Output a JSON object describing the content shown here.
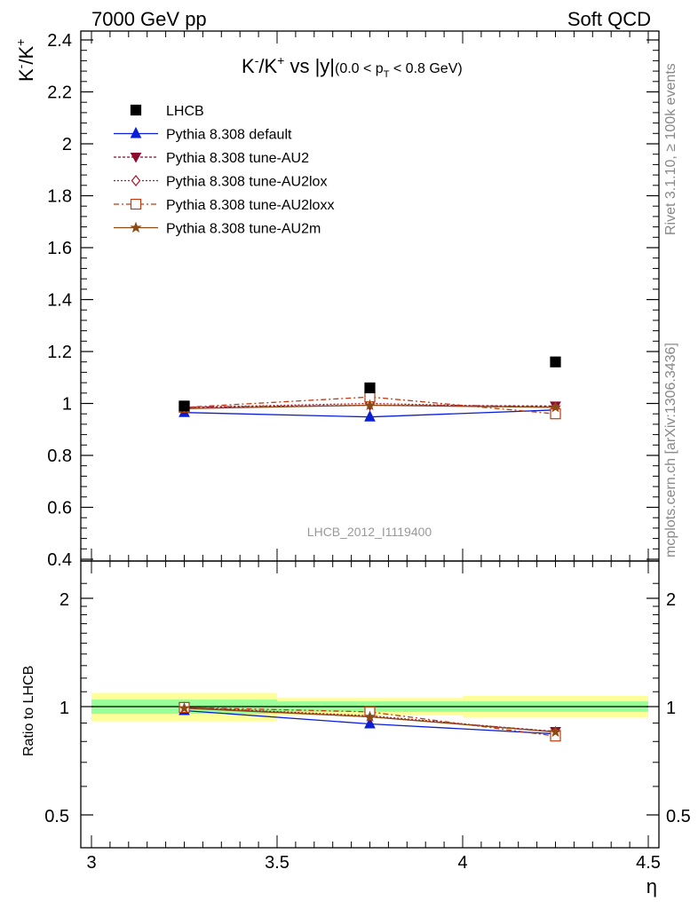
{
  "header": {
    "left": "7000 GeV pp",
    "right": "Soft QCD"
  },
  "side_labels": {
    "rivet": "Rivet 3.1.10, ≥ 100k events",
    "mcplots": "mcplots.cern.ch [arXiv:1306.3436]"
  },
  "analysis_id": "LHCB_2012_I1119400",
  "chart_data": [
    {
      "type": "scatter",
      "panel": "main",
      "title": "K⁻/K⁺ vs |y| (0.0 < pT < 0.8 GeV)",
      "title_parts": {
        "main": "K",
        "sup1": "-",
        "slash": "/K",
        "sup2": "+",
        "vs": " vs |y|",
        "cut_open": "(0.0 < p",
        "cut_sub": "T",
        "cut_close": " < 0.8 GeV)"
      },
      "ylabel_parts": {
        "a": "K",
        "sup1": "-",
        "b": "/K",
        "sup2": "+"
      },
      "xlabel": "η",
      "xlim": [
        3.0,
        4.5
      ],
      "ylim": [
        0.4,
        2.43
      ],
      "y_ticks": [
        0.4,
        0.6,
        0.8,
        1,
        1.2,
        1.4,
        1.6,
        1.8,
        2,
        2.2,
        2.4
      ],
      "y_tick_labels": [
        "0.4",
        "0.6",
        "0.8",
        "1",
        "1.2",
        "1.4",
        "1.6",
        "1.8",
        "2",
        "2.2",
        "2.4"
      ],
      "legend_position": "top-left",
      "x_bins": [
        [
          3.0,
          3.5
        ],
        [
          3.5,
          4.0
        ],
        [
          4.0,
          4.5
        ]
      ],
      "x": [
        3.25,
        3.75,
        4.25
      ],
      "data": {
        "name": "LHCB",
        "color": "#000000",
        "values": [
          0.99,
          1.06,
          1.16
        ],
        "errors": [
          0.015,
          0.012,
          0.012
        ]
      },
      "series": [
        {
          "name": "Pythia 8.308 default",
          "color": "#0a1fd6",
          "marker": "triangle-up-filled",
          "dash": "",
          "values": [
            0.965,
            0.948,
            0.975
          ]
        },
        {
          "name": "Pythia 8.308 tune-AU2",
          "color": "#8b0a2e",
          "marker": "triangle-down-filled",
          "dash": "3,2",
          "values": [
            0.985,
            0.993,
            0.99
          ]
        },
        {
          "name": "Pythia 8.308 tune-AU2lox",
          "color": "#a31a2a",
          "marker": "diamond-open",
          "dash": "2,2",
          "values": [
            0.985,
            1.0,
            0.985
          ]
        },
        {
          "name": "Pythia 8.308 tune-AU2loxx",
          "color": "#c23a10",
          "marker": "square-open",
          "dash": "6,3,2,3",
          "values": [
            0.985,
            1.025,
            0.96
          ]
        },
        {
          "name": "Pythia 8.308 tune-AU2m",
          "color": "#8b4a14",
          "marker": "star-filled",
          "dash": "",
          "values": [
            0.98,
            0.993,
            0.985
          ]
        }
      ]
    },
    {
      "type": "scatter",
      "panel": "ratio",
      "ylabel": "Ratio to LHCB",
      "xlim": [
        3.0,
        4.5
      ],
      "ylim": [
        0.4,
        2.3
      ],
      "y_scale": "log",
      "x_ticks": [
        3,
        3.5,
        4,
        4.5
      ],
      "x_tick_labels": [
        "3",
        "3.5",
        "4",
        "4.5"
      ],
      "y_ticks": [
        0.5,
        1,
        2
      ],
      "y_tick_labels": [
        "0.5",
        "1",
        "2"
      ],
      "y_tick_labels_right": [
        "0.5",
        "1",
        "2"
      ],
      "bands": {
        "inner_color": "#99ff99",
        "outer_color": "#ffff99",
        "inner": [
          [
            0.955,
            1.046
          ],
          [
            0.967,
            1.034
          ],
          [
            0.967,
            1.034
          ]
        ],
        "outer": [
          [
            0.91,
            1.092
          ],
          [
            0.945,
            1.057
          ],
          [
            0.932,
            1.072
          ]
        ]
      },
      "series": [
        {
          "name": "Pythia 8.308 default",
          "values": [
            0.975,
            0.895,
            0.84
          ]
        },
        {
          "name": "Pythia 8.308 tune-AU2",
          "values": [
            0.995,
            0.937,
            0.853
          ]
        },
        {
          "name": "Pythia 8.308 tune-AU2lox",
          "values": [
            0.995,
            0.943,
            0.85
          ]
        },
        {
          "name": "Pythia 8.308 tune-AU2loxx",
          "values": [
            0.995,
            0.967,
            0.828
          ]
        },
        {
          "name": "Pythia 8.308 tune-AU2m",
          "values": [
            0.99,
            0.937,
            0.85
          ]
        }
      ]
    }
  ]
}
